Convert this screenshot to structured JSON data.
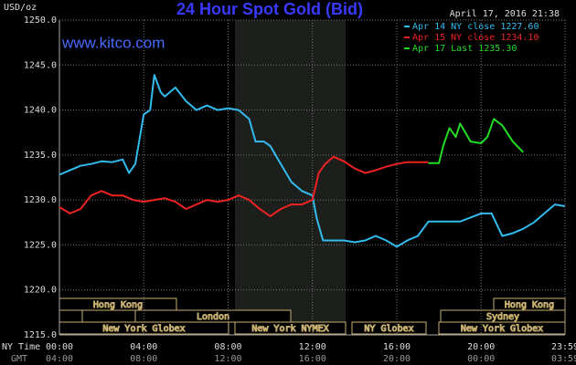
{
  "chart_data": {
    "type": "line",
    "title": "24 Hour Spot Gold (Bid)",
    "site": "www.kitco.com",
    "y_label": "USD/oz",
    "timestamp": "April 17, 2016 21:38",
    "x_label": "NY Time",
    "x2_label": "GMT",
    "xlim": [
      0,
      23.98
    ],
    "xticks": [
      {
        "value": 0,
        "label": "00:00"
      },
      {
        "value": 4,
        "label": "04:00"
      },
      {
        "value": 8,
        "label": "08:00"
      },
      {
        "value": 12,
        "label": "12:00"
      },
      {
        "value": 16,
        "label": "16:00"
      },
      {
        "value": 20,
        "label": "20:00"
      },
      {
        "value": 23.98,
        "label": "23:59"
      }
    ],
    "x2ticks": [
      "04:00",
      "08:00",
      "12:00",
      "16:00",
      "20:00",
      "00:00",
      "03:59"
    ],
    "ylim": [
      1215,
      1250
    ],
    "yticks": [
      {
        "value": 1215,
        "label": "1215.0"
      },
      {
        "value": 1220,
        "label": "1220.0"
      },
      {
        "value": 1225,
        "label": "1225.0"
      },
      {
        "value": 1230,
        "label": "1230.0"
      },
      {
        "value": 1235,
        "label": "1235.0"
      },
      {
        "value": 1240,
        "label": "1240.0"
      },
      {
        "value": 1245,
        "label": "1245.0"
      },
      {
        "value": 1250,
        "label": "1250.0"
      }
    ],
    "grid": true,
    "legend": "top-right",
    "sessions": [
      "Hong Kong",
      "Hong Kong",
      "London",
      "Sydney",
      "New York Globex",
      "New York NYMEX",
      "NY Globex",
      "New York Globex"
    ],
    "series": [
      {
        "name": "Apr 14 NY close 1227.60",
        "color": "#33bbee",
        "x": [
          0,
          0.5,
          1,
          1.5,
          2,
          2.5,
          3,
          3.3,
          3.6,
          4,
          4.3,
          4.5,
          4.8,
          5,
          5.5,
          6,
          6.5,
          7,
          7.5,
          8,
          8.5,
          9,
          9.3,
          9.7,
          10,
          10.5,
          11,
          11.5,
          12,
          12.2,
          12.5,
          13,
          13.5,
          14,
          14.5,
          15,
          15.5,
          16,
          16.5,
          17,
          17.5,
          18,
          19,
          20,
          20.5,
          21,
          21.5,
          22,
          22.5,
          23,
          23.5,
          23.98
        ],
        "values": [
          1232.8,
          1233.3,
          1233.8,
          1234,
          1234.3,
          1234.2,
          1234.5,
          1233,
          1234,
          1239.5,
          1240,
          1243.9,
          1242,
          1241.5,
          1242.5,
          1241,
          1240,
          1240.5,
          1240,
          1240.2,
          1240,
          1239,
          1236.5,
          1236.5,
          1236,
          1234,
          1232,
          1231,
          1230.5,
          1228,
          1225.5,
          1225.5,
          1225.5,
          1225.3,
          1225.5,
          1226,
          1225.5,
          1224.8,
          1225.5,
          1226,
          1227.6,
          1227.6,
          1227.6,
          1228.5,
          1228.5,
          1226,
          1226.3,
          1226.8,
          1227.5,
          1228.5,
          1229.5,
          1229.3
        ]
      },
      {
        "name": "Apr 15 NY close 1234.10",
        "color": "#ee2222",
        "x": [
          0,
          0.5,
          1,
          1.5,
          2,
          2.5,
          3,
          3.5,
          4,
          4.5,
          5,
          5.5,
          6,
          6.5,
          7,
          7.5,
          8,
          8.5,
          9,
          9.5,
          10,
          10.5,
          11,
          11.5,
          12,
          12.3,
          12.6,
          13,
          13.5,
          14,
          14.5,
          15,
          15.5,
          16,
          16.5,
          17,
          17.5
        ],
        "values": [
          1229.2,
          1228.5,
          1229,
          1230.5,
          1231,
          1230.5,
          1230.5,
          1230,
          1229.8,
          1230,
          1230.2,
          1229.8,
          1229,
          1229.5,
          1230,
          1229.8,
          1230,
          1230.5,
          1230,
          1229,
          1228.2,
          1229,
          1229.5,
          1229.5,
          1230,
          1233,
          1234,
          1234.8,
          1234.3,
          1233.5,
          1233,
          1233.3,
          1233.7,
          1234,
          1234.2,
          1234.2,
          1234.2
        ]
      },
      {
        "name": "Apr 17 Last 1235.30",
        "color": "#22dd22",
        "x": [
          17.5,
          18,
          18.2,
          18.5,
          18.8,
          19,
          19.5,
          20,
          20.3,
          20.6,
          21,
          21.5,
          22
        ],
        "values": [
          1234.1,
          1234.1,
          1236,
          1238,
          1237,
          1238.5,
          1236.5,
          1236.3,
          1237,
          1239,
          1238.3,
          1236.5,
          1235.3
        ]
      }
    ]
  }
}
